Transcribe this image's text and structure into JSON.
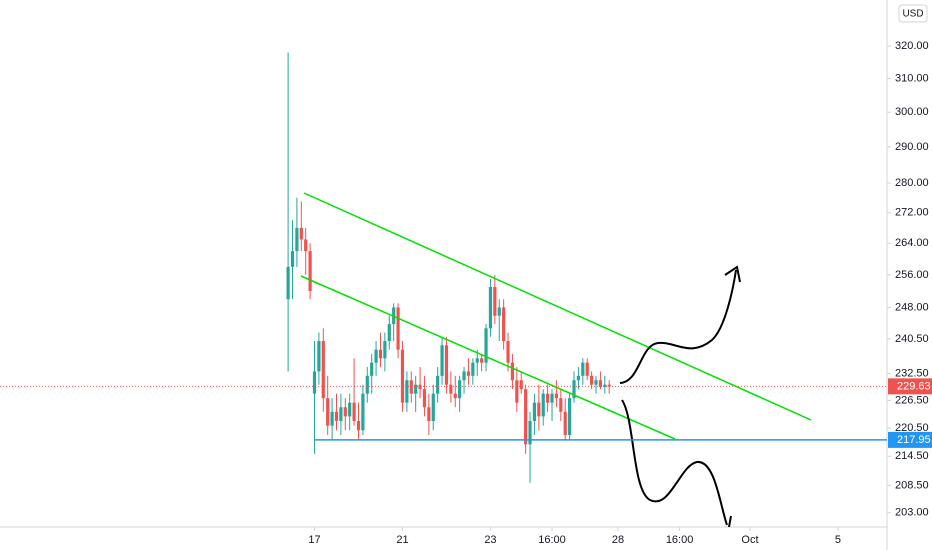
{
  "chart_data": {
    "type": "candlestick",
    "currency": "USD",
    "log_scale": true,
    "up_color": "#26a69a",
    "down_color": "#ef5350",
    "ylim": [
      200.2,
      334.7
    ],
    "yticks": [
      {
        "value": 320,
        "label": "320.00"
      },
      {
        "value": 310,
        "label": "310.00"
      },
      {
        "value": 300,
        "label": "300.00"
      },
      {
        "value": 290,
        "label": "290.00"
      },
      {
        "value": 280,
        "label": "280.00"
      },
      {
        "value": 272,
        "label": "272.00"
      },
      {
        "value": 264,
        "label": "264.00"
      },
      {
        "value": 256,
        "label": "256.00"
      },
      {
        "value": 248,
        "label": "248.00"
      },
      {
        "value": 240.5,
        "label": "240.50"
      },
      {
        "value": 232.5,
        "label": "232.50"
      },
      {
        "value": 226.5,
        "label": "226.50"
      },
      {
        "value": 220.5,
        "label": "220.50"
      },
      {
        "value": 214.5,
        "label": "214.50"
      },
      {
        "value": 208.5,
        "label": "208.50"
      },
      {
        "value": 203,
        "label": "203.00"
      }
    ],
    "xlim": [
      -65.5,
      135.7
    ],
    "xticks": [
      {
        "value": 6,
        "label": "17"
      },
      {
        "value": 26,
        "label": "21"
      },
      {
        "value": 46,
        "label": "23"
      },
      {
        "value": 60,
        "label": "16:00"
      },
      {
        "value": 75,
        "label": "28"
      },
      {
        "value": 89,
        "label": "16:00"
      },
      {
        "value": 105,
        "label": "Oct"
      },
      {
        "value": 125,
        "label": "5"
      }
    ],
    "open": [
      250,
      258,
      262,
      268,
      265,
      262,
      228,
      233,
      240,
      227,
      221,
      224,
      222,
      225,
      223,
      226,
      222,
      220,
      228,
      232,
      235,
      238,
      236,
      240,
      244,
      248,
      238,
      226,
      231,
      228,
      230,
      229,
      225,
      222,
      228,
      232,
      239,
      230,
      228,
      227,
      231,
      233,
      232,
      235,
      236,
      235,
      243,
      253,
      246,
      248,
      240,
      235,
      231,
      231,
      229,
      217,
      222,
      226,
      223,
      228,
      226,
      228,
      227,
      224,
      219,
      227,
      231,
      232,
      235,
      232,
      230,
      231,
      229.5,
      230
    ],
    "high": [
      318,
      270,
      276,
      275,
      268,
      264,
      240,
      242,
      243,
      232,
      227,
      228,
      228,
      227,
      228,
      236,
      226,
      230,
      234,
      237,
      240,
      242,
      242,
      246,
      249,
      249,
      240,
      233,
      233,
      232,
      234,
      232,
      228,
      230,
      234,
      241,
      241,
      233,
      232,
      232,
      234,
      236,
      236,
      238,
      237,
      244,
      255,
      256,
      250,
      250,
      242,
      237,
      234,
      233,
      230,
      224,
      228,
      230,
      229,
      230,
      229,
      231,
      229,
      227,
      228,
      233,
      234,
      236,
      236,
      233,
      232,
      233,
      232,
      231
    ],
    "low": [
      233,
      250,
      258,
      262,
      256,
      250,
      215,
      230,
      224,
      219,
      218,
      220,
      219,
      220,
      220,
      221,
      218,
      219,
      226,
      228,
      232,
      234,
      233,
      238,
      240,
      236,
      224,
      224,
      226,
      224,
      227,
      223,
      219,
      220,
      226,
      230,
      228,
      226,
      225,
      224,
      228,
      230,
      230,
      232,
      233,
      233,
      241,
      244,
      240,
      238,
      233,
      229,
      224,
      228,
      215,
      209,
      219,
      220,
      221,
      224,
      222,
      225,
      222,
      218,
      218,
      226,
      229,
      230,
      231,
      229,
      228,
      229,
      228,
      228
    ],
    "close": [
      258,
      262,
      268,
      265,
      262,
      252,
      233,
      240,
      227,
      221,
      224,
      222,
      225,
      223,
      226,
      222,
      220,
      228,
      232,
      235,
      238,
      236,
      240,
      244,
      248,
      238,
      226,
      231,
      228,
      230,
      229,
      225,
      222,
      228,
      232,
      239,
      230,
      228,
      227,
      231,
      233,
      232,
      235,
      236,
      235,
      243,
      253,
      246,
      248,
      240,
      235,
      231,
      226,
      229,
      217,
      222,
      226,
      223,
      228,
      226,
      228,
      227,
      224,
      219,
      227,
      231,
      232,
      235,
      232,
      230,
      231,
      229.5,
      230,
      229.6
    ],
    "last_price": 229.63,
    "support_level": 217.95
  }
}
